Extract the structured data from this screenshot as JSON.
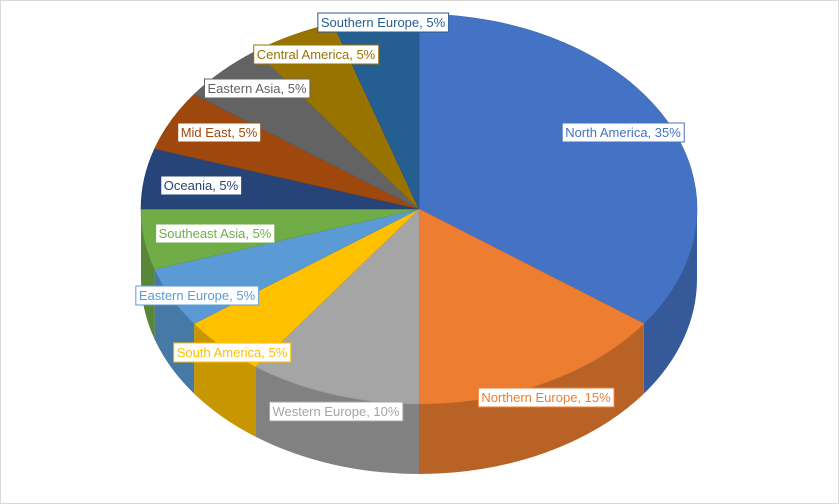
{
  "chart_data": {
    "type": "pie",
    "style": "3d",
    "title": "",
    "slices": [
      {
        "label": "North America",
        "value": 35,
        "display": "North America, 35%",
        "color": "#4472c4"
      },
      {
        "label": "Northern Europe",
        "value": 15,
        "display": "Northern Europe, 15%",
        "color": "#ed7d31"
      },
      {
        "label": "Western Europe",
        "value": 10,
        "display": "Western Europe, 10%",
        "color": "#a5a5a5"
      },
      {
        "label": "South America",
        "value": 5,
        "display": "South  America, 5%",
        "color": "#ffc000"
      },
      {
        "label": "Eastern Europe",
        "value": 5,
        "display": "Eastern Europe, 5%",
        "color": "#5b9bd5"
      },
      {
        "label": "Southeast Asia",
        "value": 5,
        "display": "Southeast  Asia, 5%",
        "color": "#70ad47"
      },
      {
        "label": "Oceania",
        "value": 5,
        "display": "Oceania, 5%",
        "color": "#264478"
      },
      {
        "label": "Mid East",
        "value": 5,
        "display": "Mid East, 5%",
        "color": "#9e480e"
      },
      {
        "label": "Eastern Asia",
        "value": 5,
        "display": "Eastern Asia, 5%",
        "color": "#636363"
      },
      {
        "label": "Central America",
        "value": 5,
        "display": "Central America, 5%",
        "color": "#997300"
      },
      {
        "label": "Southern Europe",
        "value": 5,
        "display": "Southern  Europe, 5%",
        "color": "#255e91"
      }
    ],
    "legend": "none"
  }
}
